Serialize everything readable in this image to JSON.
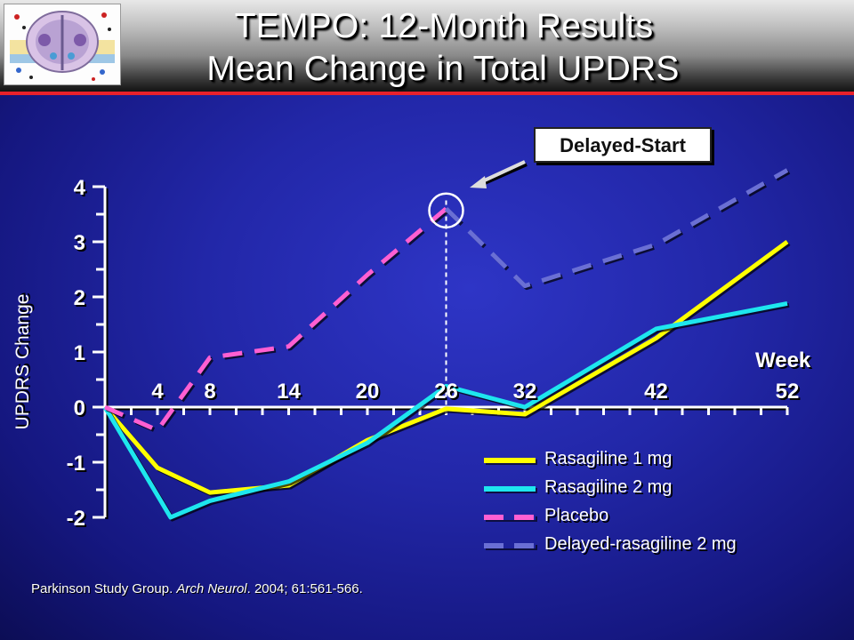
{
  "slide": {
    "title_line1": "TEMPO: 12-Month Results",
    "title_line2": "Mean Change in Total UPDRS",
    "callout": "Delayed-Start",
    "citation_authors": "Parkinson Study Group. ",
    "citation_journal": "Arch Neurol",
    "citation_rest": ". 2004; 61:561-566."
  },
  "colors": {
    "rasagiline_1mg": "#ffff00",
    "rasagiline_2mg": "#1ee6ee",
    "placebo": "#ff5fd2",
    "delayed_rasagiline_2mg": "#6a6fd4",
    "header_accent": "#e8212b"
  },
  "chart_data": {
    "type": "line",
    "xlabel": "Week",
    "ylabel": "UPDRS Change",
    "ylim": [
      -2,
      4
    ],
    "yticks": [
      "4",
      "3",
      "2",
      "1",
      "0",
      "-1",
      "-2"
    ],
    "x_tick_labels": [
      "4",
      "8",
      "14",
      "20",
      "26",
      "32",
      "42",
      "52"
    ],
    "x_label_weeks": [
      4,
      8,
      14,
      20,
      26,
      32,
      42,
      52
    ],
    "grid": false,
    "legend_position": "bottom-right",
    "series": [
      {
        "name": "Rasagiline 1 mg",
        "style": "solid",
        "points": [
          [
            0,
            0
          ],
          [
            4,
            -1.1
          ],
          [
            8,
            -1.55
          ],
          [
            14,
            -1.42
          ],
          [
            20,
            -0.6
          ],
          [
            26,
            -0.03
          ],
          [
            32,
            -0.13
          ],
          [
            42,
            1.25
          ],
          [
            52,
            3.0
          ]
        ]
      },
      {
        "name": "Rasagiline 2 mg",
        "style": "solid",
        "points": [
          [
            0,
            0
          ],
          [
            5,
            -2.0
          ],
          [
            8,
            -1.7
          ],
          [
            14,
            -1.35
          ],
          [
            20,
            -0.65
          ],
          [
            26,
            0.38
          ],
          [
            32,
            0.0
          ],
          [
            42,
            1.42
          ],
          [
            52,
            1.88
          ]
        ]
      },
      {
        "name": "Placebo",
        "style": "dashed",
        "points": [
          [
            0,
            0
          ],
          [
            4,
            -0.42
          ],
          [
            8,
            0.9
          ],
          [
            14,
            1.1
          ],
          [
            20,
            2.4
          ],
          [
            26,
            3.6
          ]
        ]
      },
      {
        "name": "Delayed-rasagiline 2 mg",
        "style": "dashed",
        "points": [
          [
            26,
            3.6
          ],
          [
            32,
            2.2
          ],
          [
            42,
            2.95
          ],
          [
            52,
            4.3
          ]
        ]
      }
    ],
    "annotations": [
      {
        "text": "Delayed-Start",
        "x": 26,
        "y": 3.6
      }
    ]
  }
}
